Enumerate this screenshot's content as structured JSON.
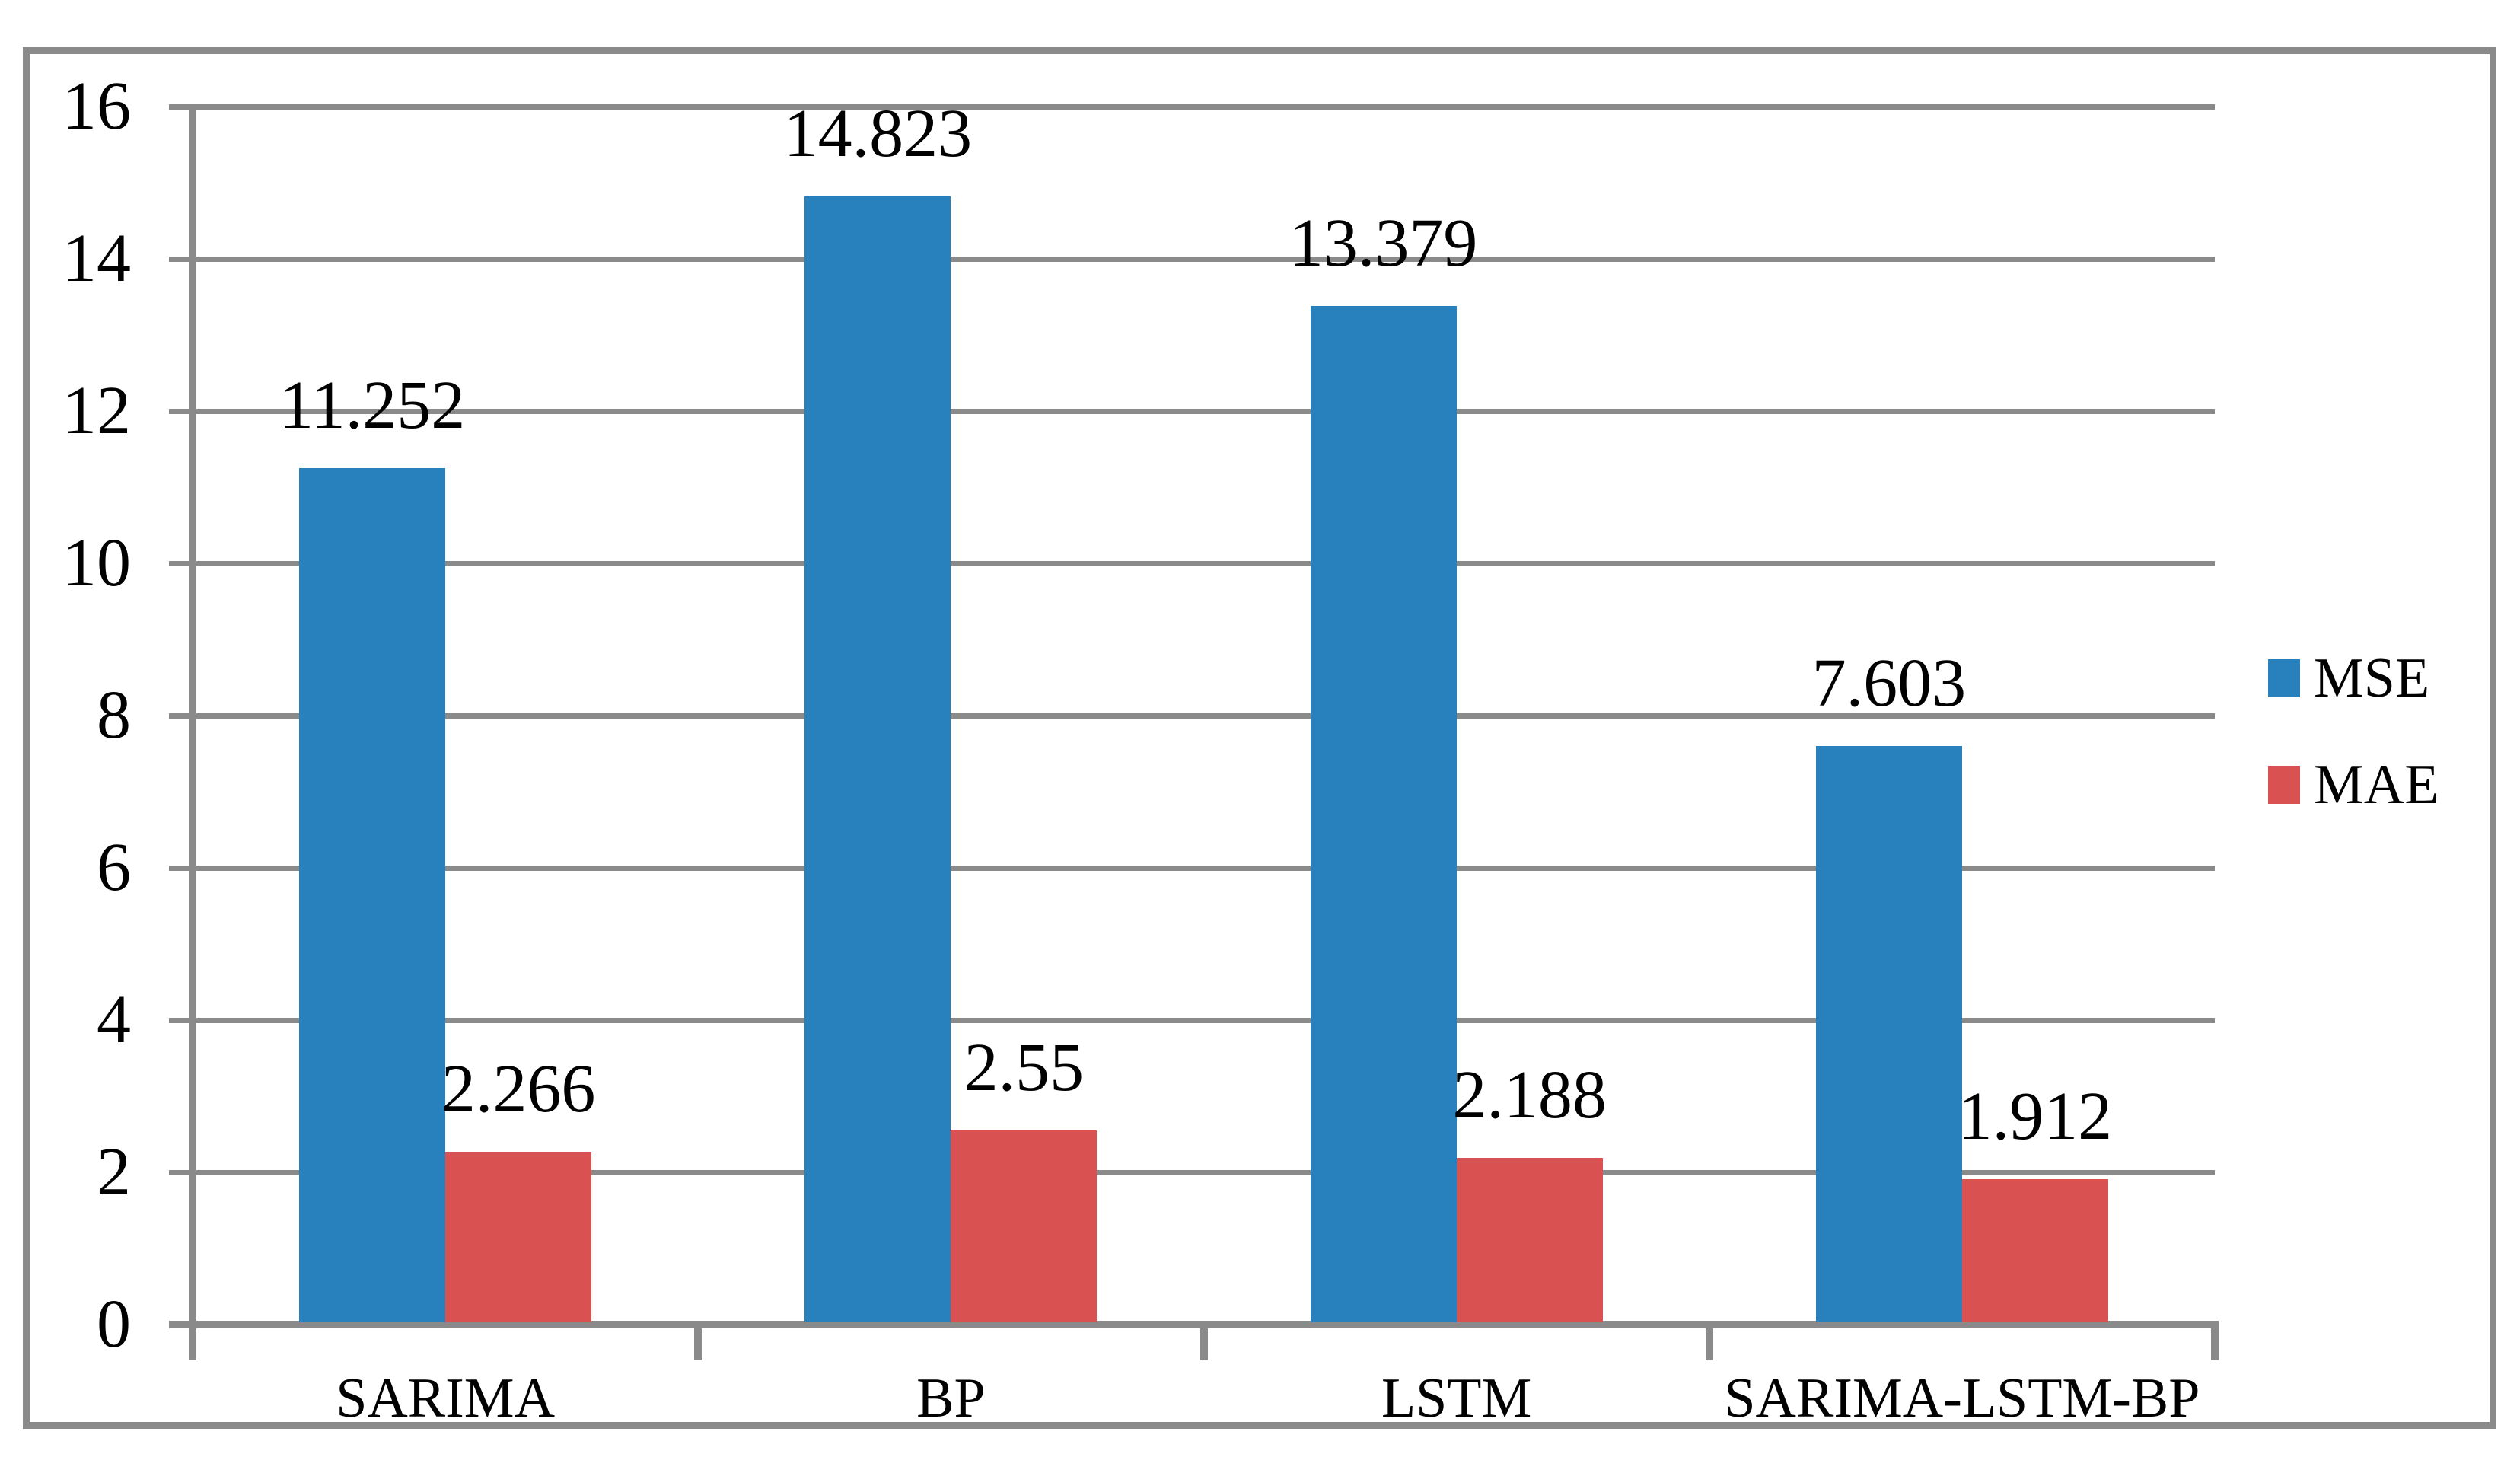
{
  "figure": {
    "background": "#FFFFFF",
    "border_color": "#8A8A8A",
    "gridline_color": "#8A8A8A",
    "text_color": "#000000"
  },
  "chart_data": {
    "type": "bar",
    "title": "",
    "xlabel": "",
    "ylabel": "",
    "categories": [
      "SARIMA",
      "BP",
      "LSTM",
      "SARIMA-LSTM-BP"
    ],
    "series": [
      {
        "name": "MSE",
        "color": "#2880BD",
        "values": [
          11.252,
          14.823,
          13.379,
          7.603
        ],
        "labels": [
          "11.252",
          "14.823",
          "13.379",
          "7.603"
        ]
      },
      {
        "name": "MAE",
        "color": "#D95150",
        "values": [
          2.266,
          2.55,
          2.188,
          1.912
        ],
        "labels": [
          "2.266",
          "2.55",
          "2.188",
          "1.912"
        ]
      }
    ],
    "ylim": [
      0,
      16
    ],
    "ytick_step": 2,
    "yticks": [
      "0",
      "2",
      "4",
      "6",
      "8",
      "10",
      "12",
      "14",
      "16"
    ],
    "grid": true,
    "legend_position": "right",
    "data_labels": "outside-end"
  }
}
